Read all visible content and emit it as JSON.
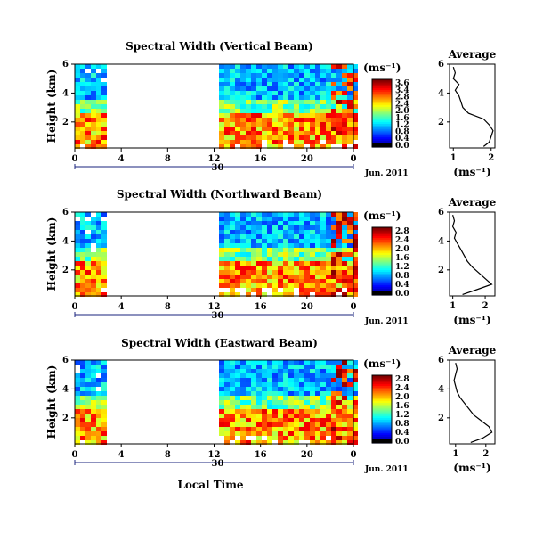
{
  "chart_data": [
    {
      "type": "heatmap",
      "title": "Spectral Width (Vertical Beam)",
      "ylabel": "Height (km)",
      "yticks": [
        "2",
        "4",
        "6"
      ],
      "ylim": [
        0.2,
        6.0
      ],
      "xticks": [
        "0",
        "4",
        "8",
        "12",
        "16",
        "20",
        "0"
      ],
      "xlim": [
        0,
        24
      ],
      "date_ticks": [
        "30"
      ],
      "date_label": "Jun. 2011",
      "data_gap_hours": [
        3,
        12
      ],
      "colorbar": {
        "unit": "(ms⁻¹)",
        "ticks": [
          "3.6",
          "3.4",
          "2.8",
          "2.4",
          "2.0",
          "1.6",
          "1.2",
          "0.8",
          "0.4",
          "0.0"
        ],
        "range": [
          0.0,
          3.6
        ]
      },
      "profile": {
        "title": "Average",
        "xlabel": "(ms⁻¹)",
        "xticks": [
          "1",
          "2"
        ],
        "xlim": [
          0.9,
          2.1
        ],
        "yticks": [
          "2",
          "4",
          "6"
        ],
        "ylim": [
          0.2,
          6.0
        ],
        "height_km": [
          0.3,
          0.6,
          1.0,
          1.4,
          1.8,
          2.2,
          2.6,
          3.0,
          3.4,
          3.8,
          4.2,
          4.6,
          5.0,
          5.4,
          5.8
        ],
        "value": [
          1.8,
          1.95,
          2.0,
          2.05,
          1.95,
          1.8,
          1.4,
          1.25,
          1.2,
          1.15,
          1.05,
          1.15,
          1.0,
          1.05,
          1.0
        ]
      }
    },
    {
      "type": "heatmap",
      "title": "Spectral Width (Northward Beam)",
      "ylabel": "Height (km)",
      "yticks": [
        "2",
        "4",
        "6"
      ],
      "ylim": [
        0.2,
        6.0
      ],
      "xticks": [
        "0",
        "4",
        "8",
        "12",
        "16",
        "20",
        "0"
      ],
      "xlim": [
        0,
        24
      ],
      "date_ticks": [
        "30"
      ],
      "date_label": "Jun. 2011",
      "data_gap_hours": [
        3,
        12
      ],
      "colorbar": {
        "unit": "(ms⁻¹)",
        "ticks": [
          "2.8",
          "2.4",
          "2.0",
          "1.6",
          "1.2",
          "0.8",
          "0.4",
          "0.0"
        ],
        "range": [
          0.0,
          2.8
        ]
      },
      "profile": {
        "title": "Average",
        "xlabel": "(ms⁻¹)",
        "xticks": [
          "1",
          "2"
        ],
        "xlim": [
          0.9,
          2.3
        ],
        "yticks": [
          "2",
          "4",
          "6"
        ],
        "ylim": [
          0.2,
          6.0
        ],
        "height_km": [
          0.3,
          0.6,
          1.0,
          1.4,
          1.8,
          2.2,
          2.6,
          3.0,
          3.4,
          3.8,
          4.2,
          4.6,
          5.0,
          5.4,
          5.8
        ],
        "value": [
          1.3,
          1.7,
          2.2,
          2.0,
          1.8,
          1.6,
          1.45,
          1.35,
          1.25,
          1.15,
          1.05,
          1.1,
          1.0,
          1.05,
          1.0
        ]
      }
    },
    {
      "type": "heatmap",
      "title": "Spectral Width (Eastward Beam)",
      "ylabel": "Height (km)",
      "yticks": [
        "2",
        "4",
        "6"
      ],
      "ylim": [
        0.2,
        6.0
      ],
      "xticks": [
        "0",
        "4",
        "8",
        "12",
        "16",
        "20",
        "0"
      ],
      "xlim": [
        0,
        24
      ],
      "date_ticks": [
        "30"
      ],
      "date_label": "Jun. 2011",
      "xlabel": "Local Time",
      "data_gap_hours": [
        3,
        12
      ],
      "colorbar": {
        "unit": "(ms⁻¹)",
        "ticks": [
          "2.8",
          "2.4",
          "2.0",
          "1.6",
          "1.2",
          "0.8",
          "0.4",
          "0.0"
        ],
        "range": [
          0.0,
          2.8
        ]
      },
      "profile": {
        "title": "Average",
        "xlabel": "(ms⁻¹)",
        "xticks": [
          "1",
          "2"
        ],
        "xlim": [
          0.8,
          2.3
        ],
        "yticks": [
          "2",
          "4",
          "6"
        ],
        "ylim": [
          0.2,
          6.0
        ],
        "height_km": [
          0.3,
          0.6,
          1.0,
          1.4,
          1.8,
          2.2,
          2.6,
          3.0,
          3.4,
          3.8,
          4.2,
          4.6,
          5.0,
          5.4,
          5.8
        ],
        "value": [
          1.5,
          1.9,
          2.2,
          2.1,
          1.85,
          1.6,
          1.45,
          1.3,
          1.15,
          1.05,
          1.0,
          0.95,
          1.0,
          1.05,
          1.0
        ]
      }
    }
  ]
}
